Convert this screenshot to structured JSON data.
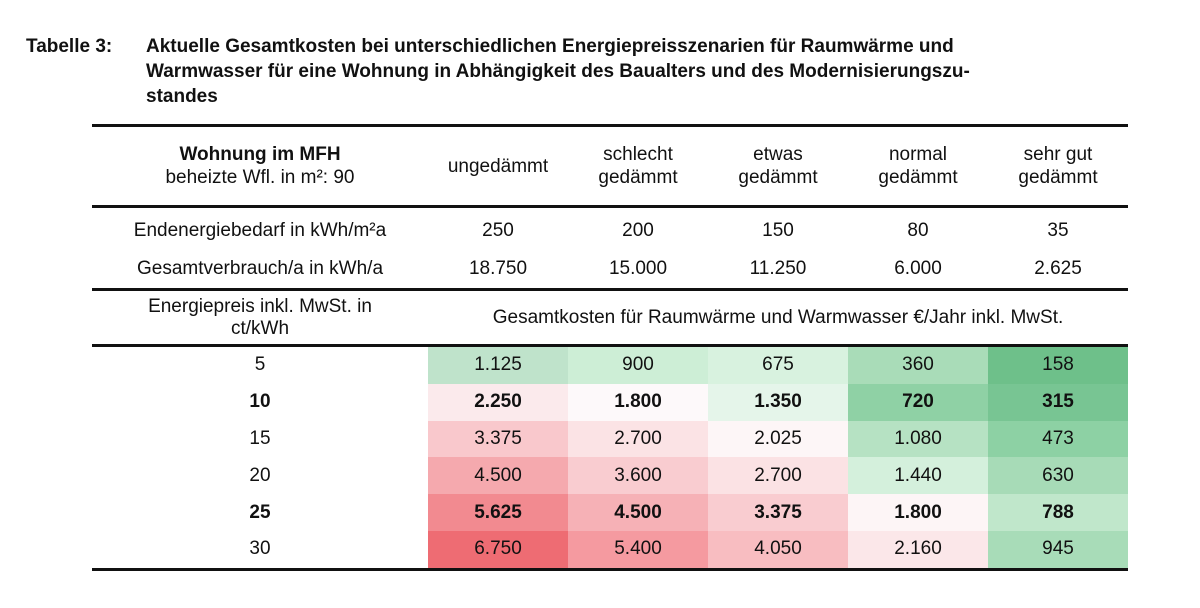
{
  "caption": {
    "label": "Tabelle 3:",
    "lines": [
      "Aktuelle Gesamtkosten bei unterschiedlichen Energiepreisszenarien für Raumwärme und",
      "Warmwasser für eine Wohnung in Abhängigkeit des Baualters und des Modernisierungszu-",
      "standes"
    ]
  },
  "header": {
    "title": "Wohnung im MFH",
    "subtitle": "beheizte Wfl. in m²: 90",
    "columns": [
      [
        "ungedämmt"
      ],
      [
        "schlecht",
        "gedämmt"
      ],
      [
        "etwas",
        "gedämmt"
      ],
      [
        "normal",
        "gedämmt"
      ],
      [
        "sehr gut",
        "gedämmt"
      ]
    ]
  },
  "summary_rows": [
    {
      "label": "Endenergiebedarf in kWh/m²a",
      "values": [
        "250",
        "200",
        "150",
        "80",
        "35"
      ]
    },
    {
      "label": "Gesamtverbrauch/a in kWh/a",
      "values": [
        "18.750",
        "15.000",
        "11.250",
        "6.000",
        "2.625"
      ]
    }
  ],
  "subheader": {
    "label_lines": [
      "Energiepreis inkl. MwSt. in",
      "ct/kWh"
    ],
    "span_text": "Gesamtkosten für Raumwärme und Warmwasser €/Jahr inkl. MwSt."
  },
  "cost_rows": [
    {
      "price": "5",
      "bold": false,
      "values": [
        "1.125",
        "900",
        "675",
        "360",
        "158"
      ]
    },
    {
      "price": "10",
      "bold": true,
      "values": [
        "2.250",
        "1.800",
        "1.350",
        "720",
        "315"
      ]
    },
    {
      "price": "15",
      "bold": false,
      "values": [
        "3.375",
        "2.700",
        "2.025",
        "1.080",
        "473"
      ]
    },
    {
      "price": "20",
      "bold": false,
      "values": [
        "4.500",
        "3.600",
        "2.700",
        "1.440",
        "630"
      ]
    },
    {
      "price": "25",
      "bold": true,
      "values": [
        "5.625",
        "4.500",
        "3.375",
        "1.800",
        "788"
      ]
    },
    {
      "price": "30",
      "bold": false,
      "values": [
        "6.750",
        "5.400",
        "4.050",
        "2.160",
        "945"
      ]
    }
  ],
  "cell_colors": [
    [
      "#bfe3cb",
      "#cdeed6",
      "#d8f2df",
      "#a9dcb8",
      "#6ec08a"
    ],
    [
      "#fbeaec",
      "#fdf9fa",
      "#e5f5ea",
      "#8fd1a5",
      "#78c593"
    ],
    [
      "#f9c8cc",
      "#fbe3e5",
      "#fdf6f7",
      "#b6e2c3",
      "#8dd1a4"
    ],
    [
      "#f5a9ae",
      "#f9ccd0",
      "#fbe2e4",
      "#d4f0dc",
      "#a7dbb7"
    ],
    [
      "#f28a90",
      "#f6b1b6",
      "#f9ccd0",
      "#fdf5f6",
      "#c0e7cb"
    ],
    [
      "#ee6c73",
      "#f59aa0",
      "#f8bdc1",
      "#fbe7e9",
      "#a8dcb8"
    ]
  ]
}
